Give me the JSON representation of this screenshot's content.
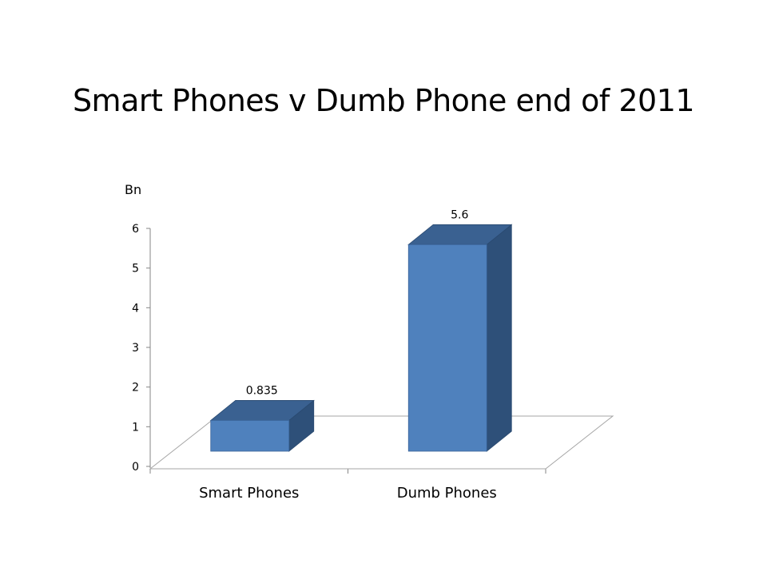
{
  "chart_data": {
    "type": "bar",
    "title": "Smart Phones v Dumb Phone end of 2011",
    "ylabel": "Bn",
    "categories": [
      "Smart Phones",
      "Dumb Phones"
    ],
    "values": [
      0.835,
      5.6
    ],
    "data_labels": [
      "0.835",
      "5.6"
    ],
    "ylim": [
      0,
      6
    ],
    "yticks": [
      "0",
      "1",
      "2",
      "3",
      "4",
      "5",
      "6"
    ],
    "three_d": true,
    "grid": false,
    "colors": {
      "front": "#4f81bd",
      "top": "#3a6191",
      "side": "#2e5079",
      "floor": "#a6a6a6"
    }
  }
}
